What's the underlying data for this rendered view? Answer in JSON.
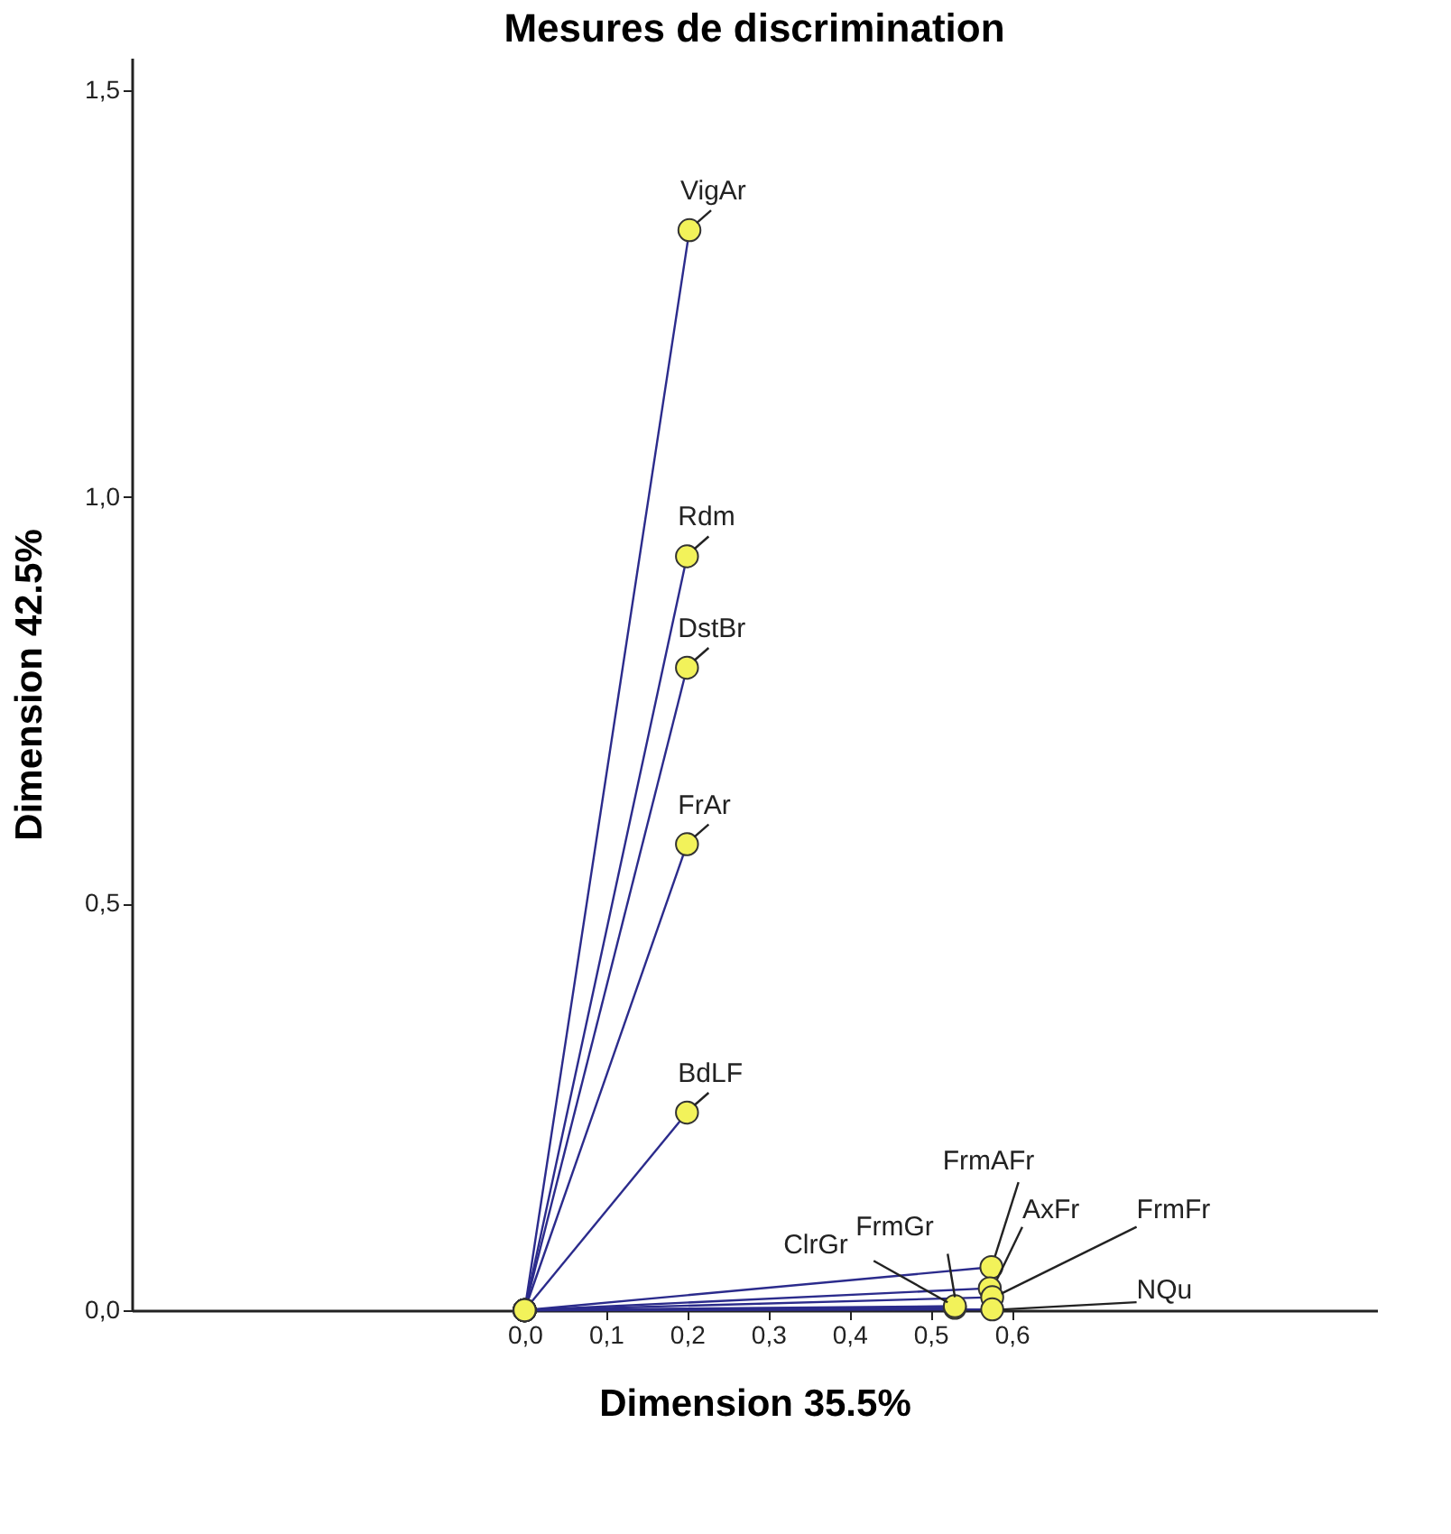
{
  "chart_data": {
    "type": "line",
    "title": "Mesures de discrimination",
    "xlabel": "Dimension 35.5%",
    "ylabel": "Dimension 42.5%",
    "xlim": [
      -0.484,
      1.05
    ],
    "ylim": [
      0,
      1.54
    ],
    "xticks": [
      {
        "value": 0,
        "label": "0,0"
      },
      {
        "value": 0.1,
        "label": "0,1"
      },
      {
        "value": 0.2,
        "label": "0,2"
      },
      {
        "value": 0.3,
        "label": "0,3"
      },
      {
        "value": 0.4,
        "label": "0,4"
      },
      {
        "value": 0.5,
        "label": "0,5"
      },
      {
        "value": 0.6,
        "label": "0,6"
      }
    ],
    "yticks": [
      {
        "value": 0,
        "label": "0,0"
      },
      {
        "value": 0.5,
        "label": "0,5"
      },
      {
        "value": 1,
        "label": "1,0"
      },
      {
        "value": 1.5,
        "label": "1,5"
      }
    ],
    "grid": false,
    "legend": false,
    "marker": "circle",
    "line_style": "solid",
    "series": [
      {
        "name": "VigAr",
        "color": "#2b2b8c",
        "x": [
          0,
          0.203
        ],
        "values": [
          0,
          1.328
        ]
      },
      {
        "name": "Rdm",
        "color": "#2b2b8c",
        "x": [
          0,
          0.2
        ],
        "values": [
          0,
          0.927
        ]
      },
      {
        "name": "DstBr",
        "color": "#2b2b8c",
        "x": [
          0,
          0.2
        ],
        "values": [
          0,
          0.79
        ]
      },
      {
        "name": "FrAr",
        "color": "#2b2b8c",
        "x": [
          0,
          0.2
        ],
        "values": [
          0,
          0.573
        ]
      },
      {
        "name": "BdLF",
        "color": "#2b2b8c",
        "x": [
          0,
          0.2
        ],
        "values": [
          0,
          0.243
        ]
      },
      {
        "name": "ClrGr",
        "color": "#2b2b8c",
        "x": [
          0,
          0.53
        ],
        "values": [
          0,
          0.003
        ]
      },
      {
        "name": "FrmGr",
        "color": "#2b2b8c",
        "x": [
          0,
          0.53
        ],
        "values": [
          0,
          0.005
        ]
      },
      {
        "name": "FrmAFr",
        "color": "#2b2b8c",
        "x": [
          0,
          0.575
        ],
        "values": [
          0,
          0.053
        ]
      },
      {
        "name": "AxFr",
        "color": "#2b2b8c",
        "x": [
          0,
          0.573
        ],
        "values": [
          0,
          0.027
        ]
      },
      {
        "name": "FrmFr",
        "color": "#2b2b8c",
        "x": [
          0,
          0.576
        ],
        "values": [
          0,
          0.016
        ]
      },
      {
        "name": "NQu",
        "color": "#2b2b8c",
        "x": [
          0,
          0.576
        ],
        "values": [
          0,
          0.001
        ]
      }
    ]
  }
}
